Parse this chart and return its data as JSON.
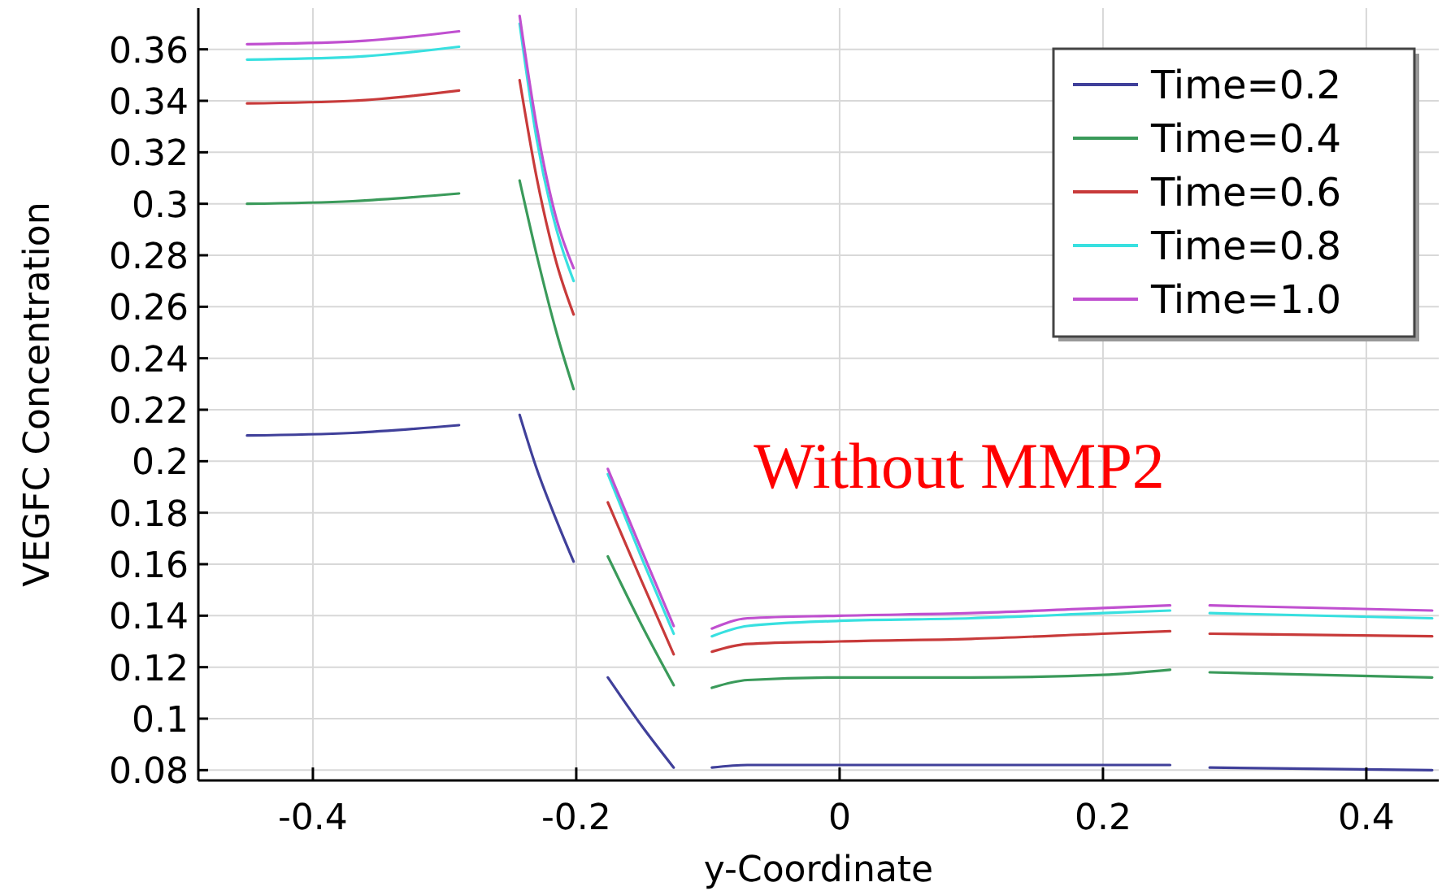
{
  "chart_data": {
    "type": "line",
    "xlabel": "y-Coordinate",
    "ylabel": "VEGFC Concentration",
    "annotations": [
      "Without MMP2"
    ],
    "series": [
      {
        "name": "Time=0.2",
        "color": "#40409a",
        "x": [
          -0.45,
          -0.37,
          -0.289
        ],
        "values": [
          0.21,
          0.211,
          0.214
        ]
      },
      {
        "name": "Time=0.4",
        "color": "#3a9a5a",
        "x": [
          -0.45,
          -0.37,
          -0.289
        ],
        "values": [
          0.3,
          0.301,
          0.304
        ]
      },
      {
        "name": "Time=0.6",
        "color": "#c83a3a",
        "x": [
          -0.45,
          -0.37,
          -0.289
        ],
        "values": [
          0.339,
          0.34,
          0.344
        ]
      },
      {
        "name": "Time=0.8",
        "color": "#38e0e0",
        "x": [
          -0.45,
          -0.37,
          -0.289
        ],
        "values": [
          0.356,
          0.357,
          0.361
        ]
      },
      {
        "name": "Time=1.0",
        "color": "#c050d0",
        "x": [
          -0.45,
          -0.37,
          -0.289
        ],
        "values": [
          0.362,
          0.363,
          0.367
        ]
      },
      {
        "color": "#40409a",
        "x": [
          -0.243,
          -0.23,
          -0.215,
          -0.202
        ],
        "values": [
          0.218,
          0.197,
          0.177,
          0.161
        ]
      },
      {
        "color": "#3a9a5a",
        "x": [
          -0.243,
          -0.23,
          -0.215,
          -0.202
        ],
        "values": [
          0.309,
          0.28,
          0.25,
          0.228
        ]
      },
      {
        "color": "#c83a3a",
        "x": [
          -0.243,
          -0.23,
          -0.215,
          -0.202
        ],
        "values": [
          0.348,
          0.31,
          0.277,
          0.257
        ]
      },
      {
        "color": "#38e0e0",
        "x": [
          -0.243,
          -0.23,
          -0.215,
          -0.202
        ],
        "values": [
          0.37,
          0.325,
          0.29,
          0.27
        ]
      },
      {
        "color": "#c050d0",
        "x": [
          -0.243,
          -0.23,
          -0.215,
          -0.202
        ],
        "values": [
          0.373,
          0.33,
          0.294,
          0.275
        ]
      },
      {
        "color": "#40409a",
        "x": [
          -0.176,
          -0.15,
          -0.126
        ],
        "values": [
          0.116,
          0.097,
          0.081
        ]
      },
      {
        "color": "#3a9a5a",
        "x": [
          -0.176,
          -0.15,
          -0.126
        ],
        "values": [
          0.163,
          0.136,
          0.113
        ]
      },
      {
        "color": "#c83a3a",
        "x": [
          -0.176,
          -0.15,
          -0.126
        ],
        "values": [
          0.184,
          0.153,
          0.125
        ]
      },
      {
        "color": "#38e0e0",
        "x": [
          -0.176,
          -0.15,
          -0.126
        ],
        "values": [
          0.195,
          0.162,
          0.133
        ]
      },
      {
        "color": "#c050d0",
        "x": [
          -0.176,
          -0.15,
          -0.126
        ],
        "values": [
          0.197,
          0.165,
          0.136
        ]
      },
      {
        "color": "#40409a",
        "x": [
          -0.097,
          -0.07,
          0,
          0.1,
          0.2,
          0.251
        ],
        "values": [
          0.081,
          0.082,
          0.082,
          0.082,
          0.082,
          0.082
        ]
      },
      {
        "color": "#3a9a5a",
        "x": [
          -0.097,
          -0.07,
          0,
          0.1,
          0.2,
          0.251
        ],
        "values": [
          0.112,
          0.115,
          0.116,
          0.116,
          0.117,
          0.119
        ]
      },
      {
        "color": "#c83a3a",
        "x": [
          -0.097,
          -0.07,
          0,
          0.1,
          0.2,
          0.251
        ],
        "values": [
          0.126,
          0.129,
          0.13,
          0.131,
          0.133,
          0.134
        ]
      },
      {
        "color": "#38e0e0",
        "x": [
          -0.097,
          -0.07,
          0,
          0.1,
          0.2,
          0.251
        ],
        "values": [
          0.132,
          0.136,
          0.138,
          0.139,
          0.141,
          0.142
        ]
      },
      {
        "color": "#c050d0",
        "x": [
          -0.097,
          -0.07,
          0,
          0.1,
          0.2,
          0.251
        ],
        "values": [
          0.135,
          0.139,
          0.14,
          0.141,
          0.143,
          0.144
        ]
      },
      {
        "color": "#40409a",
        "x": [
          0.281,
          0.45
        ],
        "values": [
          0.081,
          0.08
        ]
      },
      {
        "color": "#3a9a5a",
        "x": [
          0.281,
          0.45
        ],
        "values": [
          0.118,
          0.116
        ]
      },
      {
        "color": "#c83a3a",
        "x": [
          0.281,
          0.45
        ],
        "values": [
          0.133,
          0.132
        ]
      },
      {
        "color": "#38e0e0",
        "x": [
          0.281,
          0.45
        ],
        "values": [
          0.141,
          0.139
        ]
      },
      {
        "color": "#c050d0",
        "x": [
          0.281,
          0.45
        ],
        "values": [
          0.144,
          0.142
        ]
      }
    ],
    "xlim": [
      -0.487,
      0.455
    ],
    "ylim": [
      0.076,
      0.376
    ],
    "xticks": [
      -0.4,
      -0.2,
      0,
      0.2,
      0.4
    ],
    "yticks": [
      0.08,
      0.1,
      0.12,
      0.14,
      0.16,
      0.18,
      0.2,
      0.22,
      0.24,
      0.26,
      0.28,
      0.3,
      0.32,
      0.34,
      0.36
    ],
    "grid": true,
    "legend": "top right",
    "line_style": "solid"
  }
}
